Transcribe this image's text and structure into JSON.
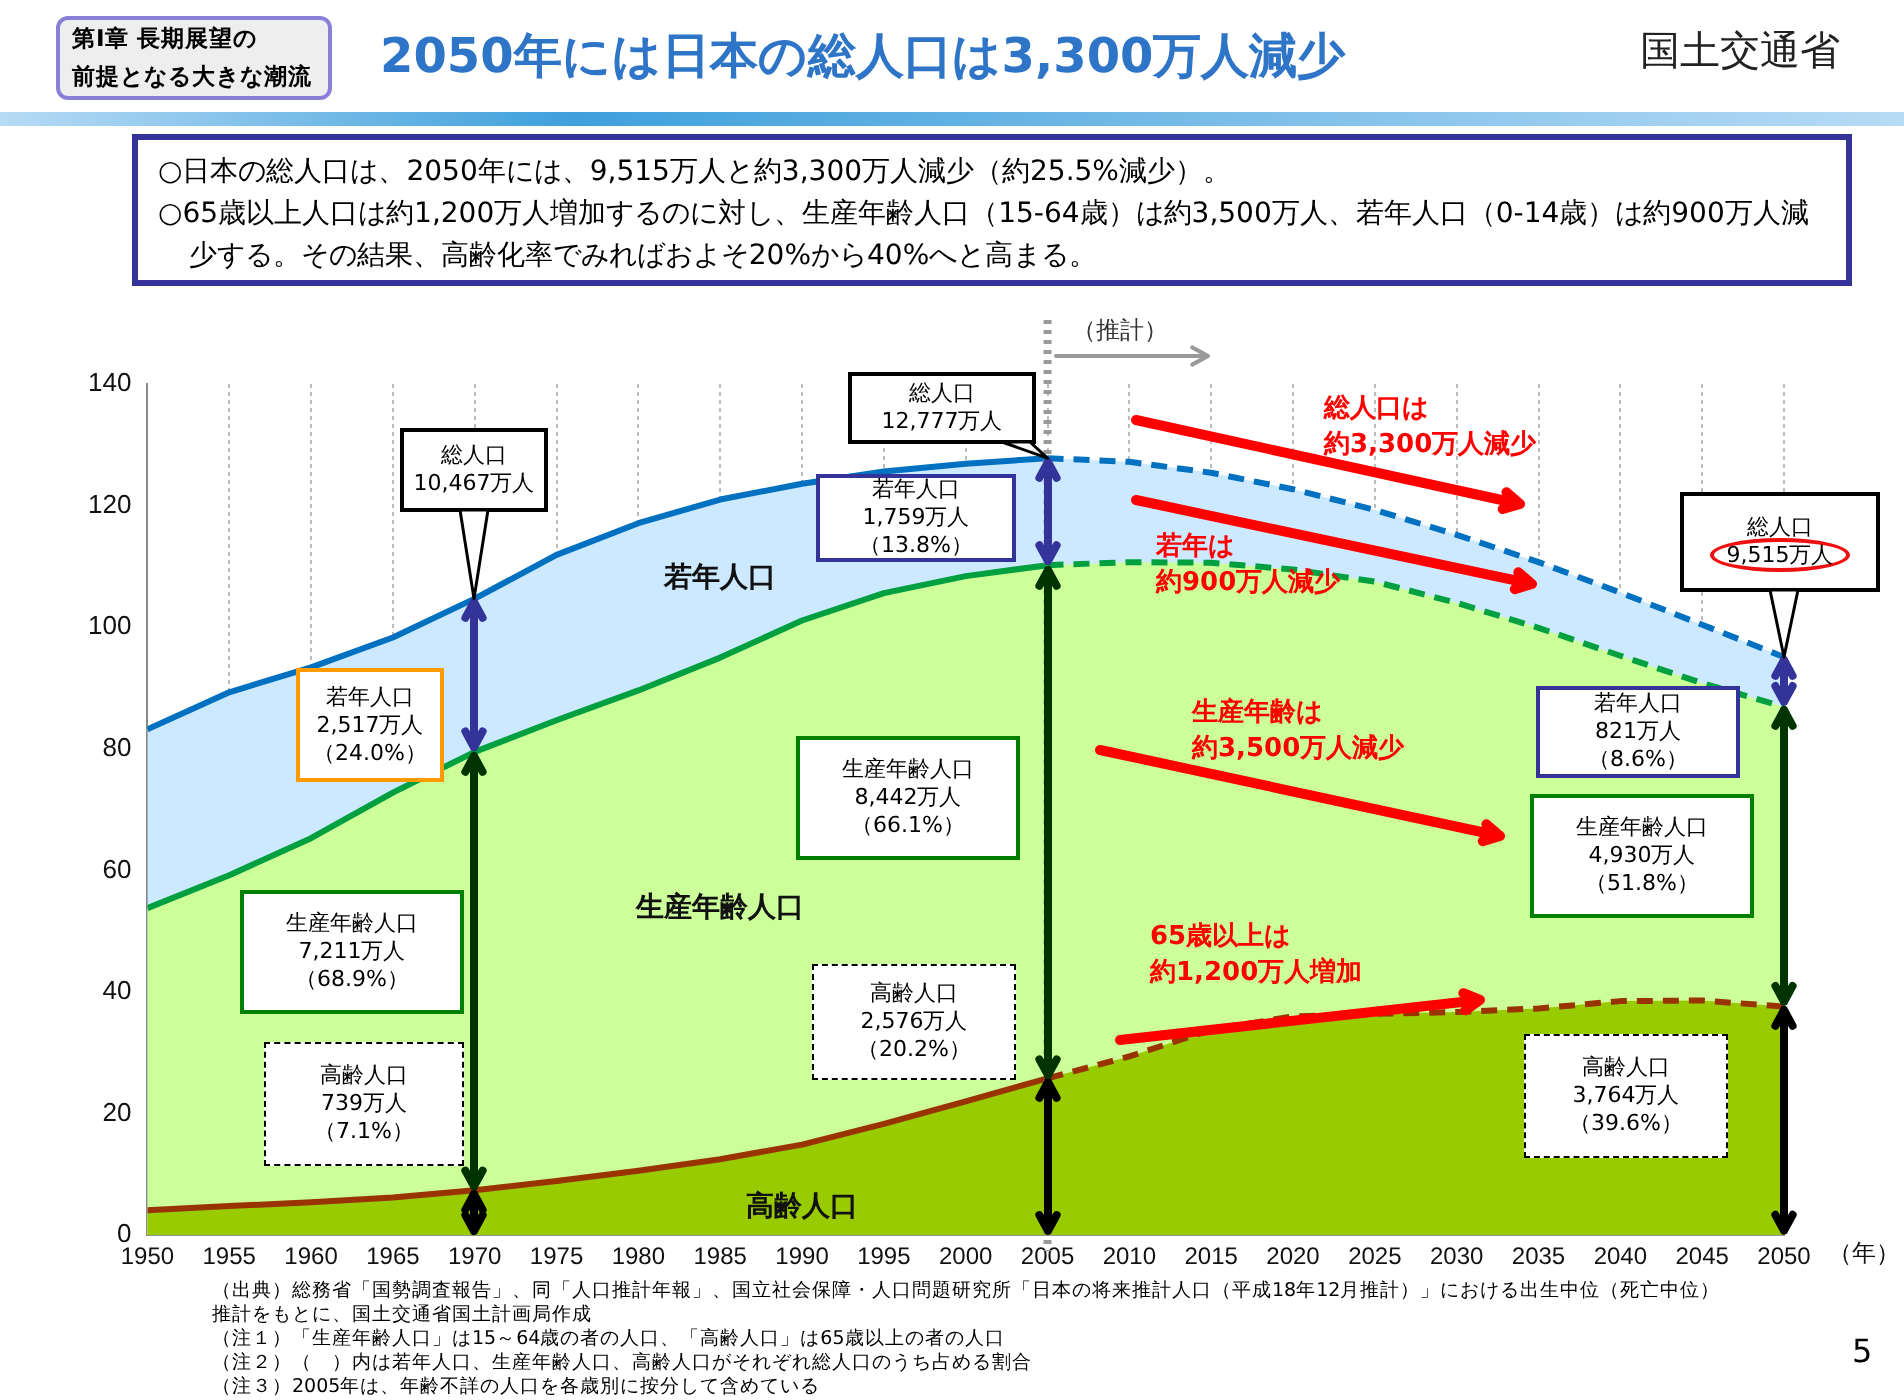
{
  "chart_data": {
    "type": "area",
    "title": "2050年には日本の総人口は3,300万人減少",
    "stacked": true,
    "grid": "x",
    "xlabel": "（年）",
    "x": [
      1950,
      1955,
      1960,
      1965,
      1970,
      1975,
      1980,
      1985,
      1990,
      1995,
      2000,
      2005,
      2010,
      2015,
      2020,
      2025,
      2030,
      2035,
      2040,
      2045,
      2050
    ],
    "xlim": [
      1950,
      2050
    ],
    "xticks": [
      1950,
      1955,
      1960,
      1965,
      1970,
      1975,
      1980,
      1985,
      1990,
      1995,
      2000,
      2005,
      2010,
      2015,
      2020,
      2025,
      2030,
      2035,
      2040,
      2045,
      2050
    ],
    "ylim": [
      0,
      140
    ],
    "yticks": [
      0,
      20,
      40,
      60,
      80,
      100,
      120,
      140
    ],
    "series": [
      {
        "name": "高齢人口",
        "color": "#99cc00",
        "values": [
          4.1,
          4.8,
          5.4,
          6.2,
          7.4,
          8.9,
          10.6,
          12.5,
          14.9,
          18.3,
          22.0,
          25.8,
          29.4,
          33.8,
          36.0,
          36.4,
          36.7,
          37.3,
          38.5,
          38.6,
          37.6
        ]
      },
      {
        "name": "生産年齢人口",
        "color": "#ccff99",
        "values": [
          49.7,
          54.4,
          59.9,
          66.6,
          72.1,
          75.8,
          79.0,
          82.5,
          86.2,
          87.3,
          86.4,
          84.4,
          81.3,
          76.8,
          73.5,
          71.1,
          67.3,
          62.6,
          56.8,
          52.2,
          49.3
        ]
      },
      {
        "name": "若年人口",
        "color": "#cce9ff",
        "values": [
          29.4,
          30.1,
          28.1,
          25.5,
          25.2,
          27.2,
          27.5,
          26.0,
          22.5,
          20.0,
          18.5,
          17.6,
          16.5,
          14.8,
          13.2,
          11.8,
          11.2,
          10.8,
          10.4,
          9.6,
          8.2
        ]
      }
    ],
    "ref_lines": [
      {
        "axis": "x",
        "value": 2005,
        "label": "（推計）",
        "color": "#999999",
        "line_style": "dotted"
      }
    ],
    "annotations": [
      "第Ⅰ章 長期展望の前提となる大きな潮流",
      "国土交通省",
      "○日本の総人口は、2050年には、9,515万人と約3,300万人減少（約25.5%減少）。",
      "○65歳以上人口は約1,200万人増加するのに対し、生産年齢人口（15-64歳）は約3,500万人、若年人口（0-14歳）は約900万人減少する。その結果、高齢化率でみればおよそ20%から40%へと高まる。",
      "総人口は約3,300万人減少",
      "若年は約900万人減少",
      "生産年齢は約3,500万人減少",
      "65歳以上は約1,200万人増加",
      "（出典）総務省「国勢調査報告」、同「人口推計年報」、国立社会保障・人口問題研究所「日本の将来推計人口（平成18年12月推計）」における出生中位（死亡中位）推計をもとに、国土交通省国土計画局作成",
      "（注１）「生産年齢人口」は15～64歳の者の人口、「高齢人口」は65歳以上の者の人口",
      "（注２）（　）内は若年人口、生産年齢人口、高齢人口がそれぞれ総人口のうち占める割合",
      "（注３）2005年は、年齢不詳の人口を各歳別に按分して含めている",
      "5",
      "若年人口2,517万人（24.0%）",
      "生産年齢人口7,211万人（68.9%）",
      "高齢人口739万人（7.1%）",
      "若年人口1,759万人（13.8%）",
      "生産年齢人口8,442万人（66.1%）",
      "高齢人口2,576万人（20.2%）",
      "若年人口821万人（8.6%）",
      "生産年齢人口4,930万人（51.8%）",
      "高齢人口3,764万人（39.6%）",
      {
        "text": "総人口10,467万人",
        "x": 1970,
        "y": 104.7
      },
      {
        "text": "総人口12,777万人",
        "x": 2005,
        "y": 127.8
      },
      {
        "text": "総人口9,515万人",
        "x": 2050,
        "y": 95.1
      }
    ]
  }
}
